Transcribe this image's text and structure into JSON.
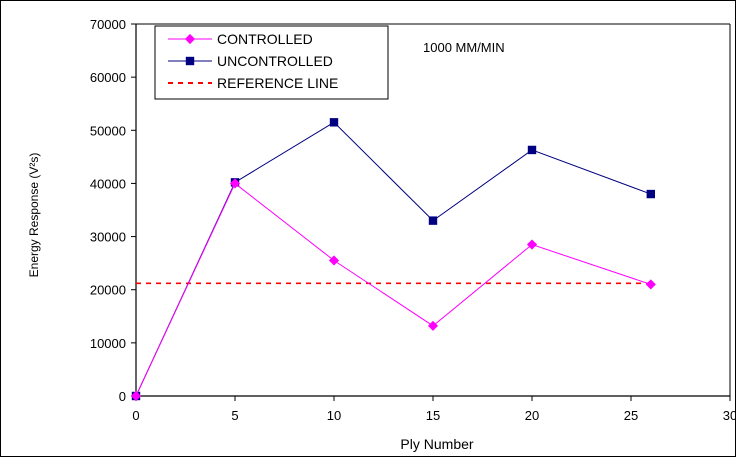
{
  "chart_data": {
    "type": "line",
    "xlabel": "Ply Number",
    "ylabel": "Energy Response (V²s)",
    "xlim": [
      0,
      30
    ],
    "ylim": [
      0,
      70000
    ],
    "x_ticks": [
      "0",
      "5",
      "10",
      "15",
      "20",
      "25",
      "30"
    ],
    "y_ticks": [
      "0",
      "10000",
      "20000",
      "30000",
      "40000",
      "50000",
      "60000",
      "70000"
    ],
    "annotation": "1000 MM/MIN",
    "grid": false,
    "legend_position": "top-left",
    "series": [
      {
        "name": "CONTROLLED",
        "color": "#ff00ff",
        "marker": "diamond",
        "x": [
          0,
          5,
          10,
          15,
          20,
          26
        ],
        "y": [
          0,
          40000,
          25500,
          13200,
          28500,
          21000
        ]
      },
      {
        "name": "UNCONTROLLED",
        "color": "#000080",
        "marker": "square",
        "x": [
          0,
          5,
          10,
          15,
          20,
          26
        ],
        "y": [
          0,
          40200,
          51500,
          33000,
          46300,
          38000
        ]
      },
      {
        "name": "REFERENCE LINE",
        "color": "#ff0000",
        "style": "dashed",
        "x": [
          0,
          26
        ],
        "y": [
          21200,
          21200
        ]
      }
    ]
  }
}
